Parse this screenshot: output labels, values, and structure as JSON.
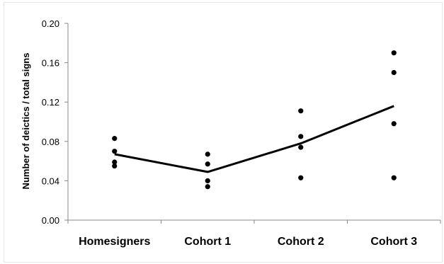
{
  "chart_data": {
    "type": "scatter",
    "ylabel": "Number of deictics / total signs",
    "xlabel": "",
    "title": "",
    "categories": [
      "Homesigners",
      "Cohort 1",
      "Cohort 2",
      "Cohort 3"
    ],
    "ylim": [
      0,
      0.2
    ],
    "yticks": [
      "0.00",
      "0.04",
      "0.08",
      "0.12",
      "0.16",
      "0.20"
    ],
    "grid": false,
    "points": [
      [
        0.083,
        0.07,
        0.059,
        0.055
      ],
      [
        0.067,
        0.057,
        0.04,
        0.034
      ],
      [
        0.111,
        0.085,
        0.074,
        0.043
      ],
      [
        0.17,
        0.15,
        0.098,
        0.043
      ]
    ],
    "line": [
      0.067,
      0.049,
      0.078,
      0.116
    ]
  }
}
